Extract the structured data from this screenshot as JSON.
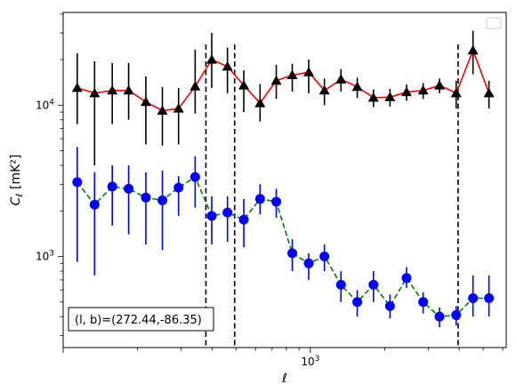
{
  "chart_data": {
    "type": "scatter",
    "xscale": "log",
    "yscale": "log",
    "xlim": [
      100,
      6200
    ],
    "ylim": [
      250,
      41000
    ],
    "xlabel": "ℓ",
    "ylabel_main": "C",
    "ylabel_sub": "ℓ",
    "ylabel_unit": "[mK²]",
    "x_tick_labels": [
      {
        "value": 1000,
        "base": "10",
        "exp": "3"
      }
    ],
    "y_tick_labels": [
      {
        "value": 1000,
        "base": "10",
        "exp": "3"
      },
      {
        "value": 10000,
        "base": "10",
        "exp": "4"
      }
    ],
    "annotation": "(l, b)=(272.44,-86.35)",
    "vlines": [
      378,
      494,
      3960
    ],
    "series": [
      {
        "marker": "triangle",
        "line_color": "#ff0000",
        "line_style": "solid",
        "errorbar_color": "#000000",
        "x": [
          114,
          134,
          158,
          184,
          216,
          252,
          293,
          342,
          399,
          462,
          538,
          626,
          728,
          845,
          985,
          1140,
          1330,
          1548,
          1800,
          2100,
          2450,
          2860,
          3330,
          3890,
          4550,
          5280
        ],
        "y": [
          13000,
          12000,
          12500,
          12500,
          10500,
          9200,
          9500,
          13300,
          20000,
          18000,
          13500,
          10300,
          14500,
          15800,
          16500,
          12500,
          14800,
          13200,
          11200,
          11300,
          12200,
          12500,
          13500,
          12000,
          23000,
          12000
        ],
        "yerr_low": [
          5500,
          8000,
          5000,
          4500,
          5000,
          3800,
          4000,
          4500,
          7000,
          6000,
          4500,
          2500,
          3500,
          3500,
          4500,
          2500,
          2500,
          2000,
          1500,
          1500,
          1500,
          1500,
          1500,
          2500,
          7000,
          2500
        ],
        "yerr_high": [
          9000,
          7500,
          6500,
          6500,
          5000,
          4000,
          3500,
          10000,
          10000,
          6000,
          3500,
          3500,
          4000,
          3000,
          3500,
          2500,
          2500,
          2000,
          1500,
          1500,
          1500,
          1500,
          1500,
          2500,
          8000,
          2500
        ]
      },
      {
        "marker": "circle",
        "marker_color": "#0000ff",
        "line_color": "#008000",
        "line_style": "dashed",
        "errorbar_color": "#0000ff",
        "x": [
          114,
          134,
          158,
          184,
          216,
          252,
          293,
          342,
          399,
          462,
          538,
          626,
          728,
          845,
          985,
          1140,
          1330,
          1548,
          1800,
          2100,
          2450,
          2860,
          3330,
          3890,
          4550,
          5280
        ],
        "y": [
          3100,
          2200,
          2900,
          2800,
          2450,
          2350,
          2850,
          3350,
          1850,
          1950,
          1750,
          2400,
          2300,
          1050,
          900,
          1000,
          650,
          500,
          650,
          470,
          720,
          500,
          400,
          410,
          530,
          530
        ],
        "yerr_low": [
          2180,
          1450,
          1300,
          1400,
          1250,
          1250,
          1000,
          1250,
          650,
          700,
          600,
          500,
          500,
          250,
          200,
          200,
          150,
          100,
          150,
          80,
          100,
          80,
          60,
          60,
          130,
          130
        ],
        "yerr_high": [
          2200,
          1400,
          1100,
          1200,
          1150,
          1350,
          550,
          1250,
          650,
          550,
          650,
          600,
          500,
          250,
          150,
          200,
          150,
          100,
          150,
          90,
          130,
          80,
          60,
          60,
          220,
          220
        ]
      }
    ],
    "legend": "top-right"
  }
}
